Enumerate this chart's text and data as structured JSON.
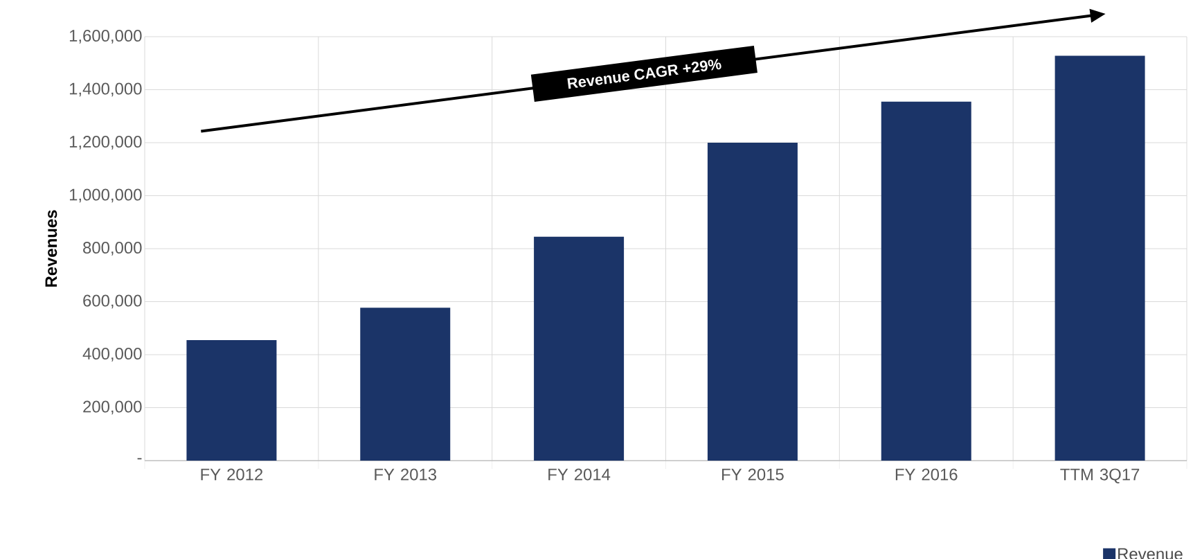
{
  "chart_data": {
    "type": "bar",
    "ylabel": "Revenues",
    "categories": [
      "FY 2012",
      "FY 2013",
      "FY 2014",
      "FY 2015",
      "FY 2016",
      "TTM 3Q17"
    ],
    "series": [
      {
        "name": "Revenue",
        "color": "#1b3468",
        "values": [
          455000,
          577000,
          845000,
          1200000,
          1355000,
          1528000
        ]
      }
    ],
    "ylim": [
      0,
      1600000
    ],
    "yticks": [
      {
        "value": 0,
        "label": "-"
      },
      {
        "value": 200000,
        "label": "200,000"
      },
      {
        "value": 400000,
        "label": "400,000"
      },
      {
        "value": 600000,
        "label": "600,000"
      },
      {
        "value": 800000,
        "label": "800,000"
      },
      {
        "value": 1000000,
        "label": "1,000,000"
      },
      {
        "value": 1200000,
        "label": "1,200,000"
      },
      {
        "value": 1400000,
        "label": "1,400,000"
      },
      {
        "value": 1600000,
        "label": "1,600,000"
      }
    ],
    "grid": true,
    "legend": "bottom right",
    "annotations": [
      "Revenue CAGR +29%"
    ]
  }
}
